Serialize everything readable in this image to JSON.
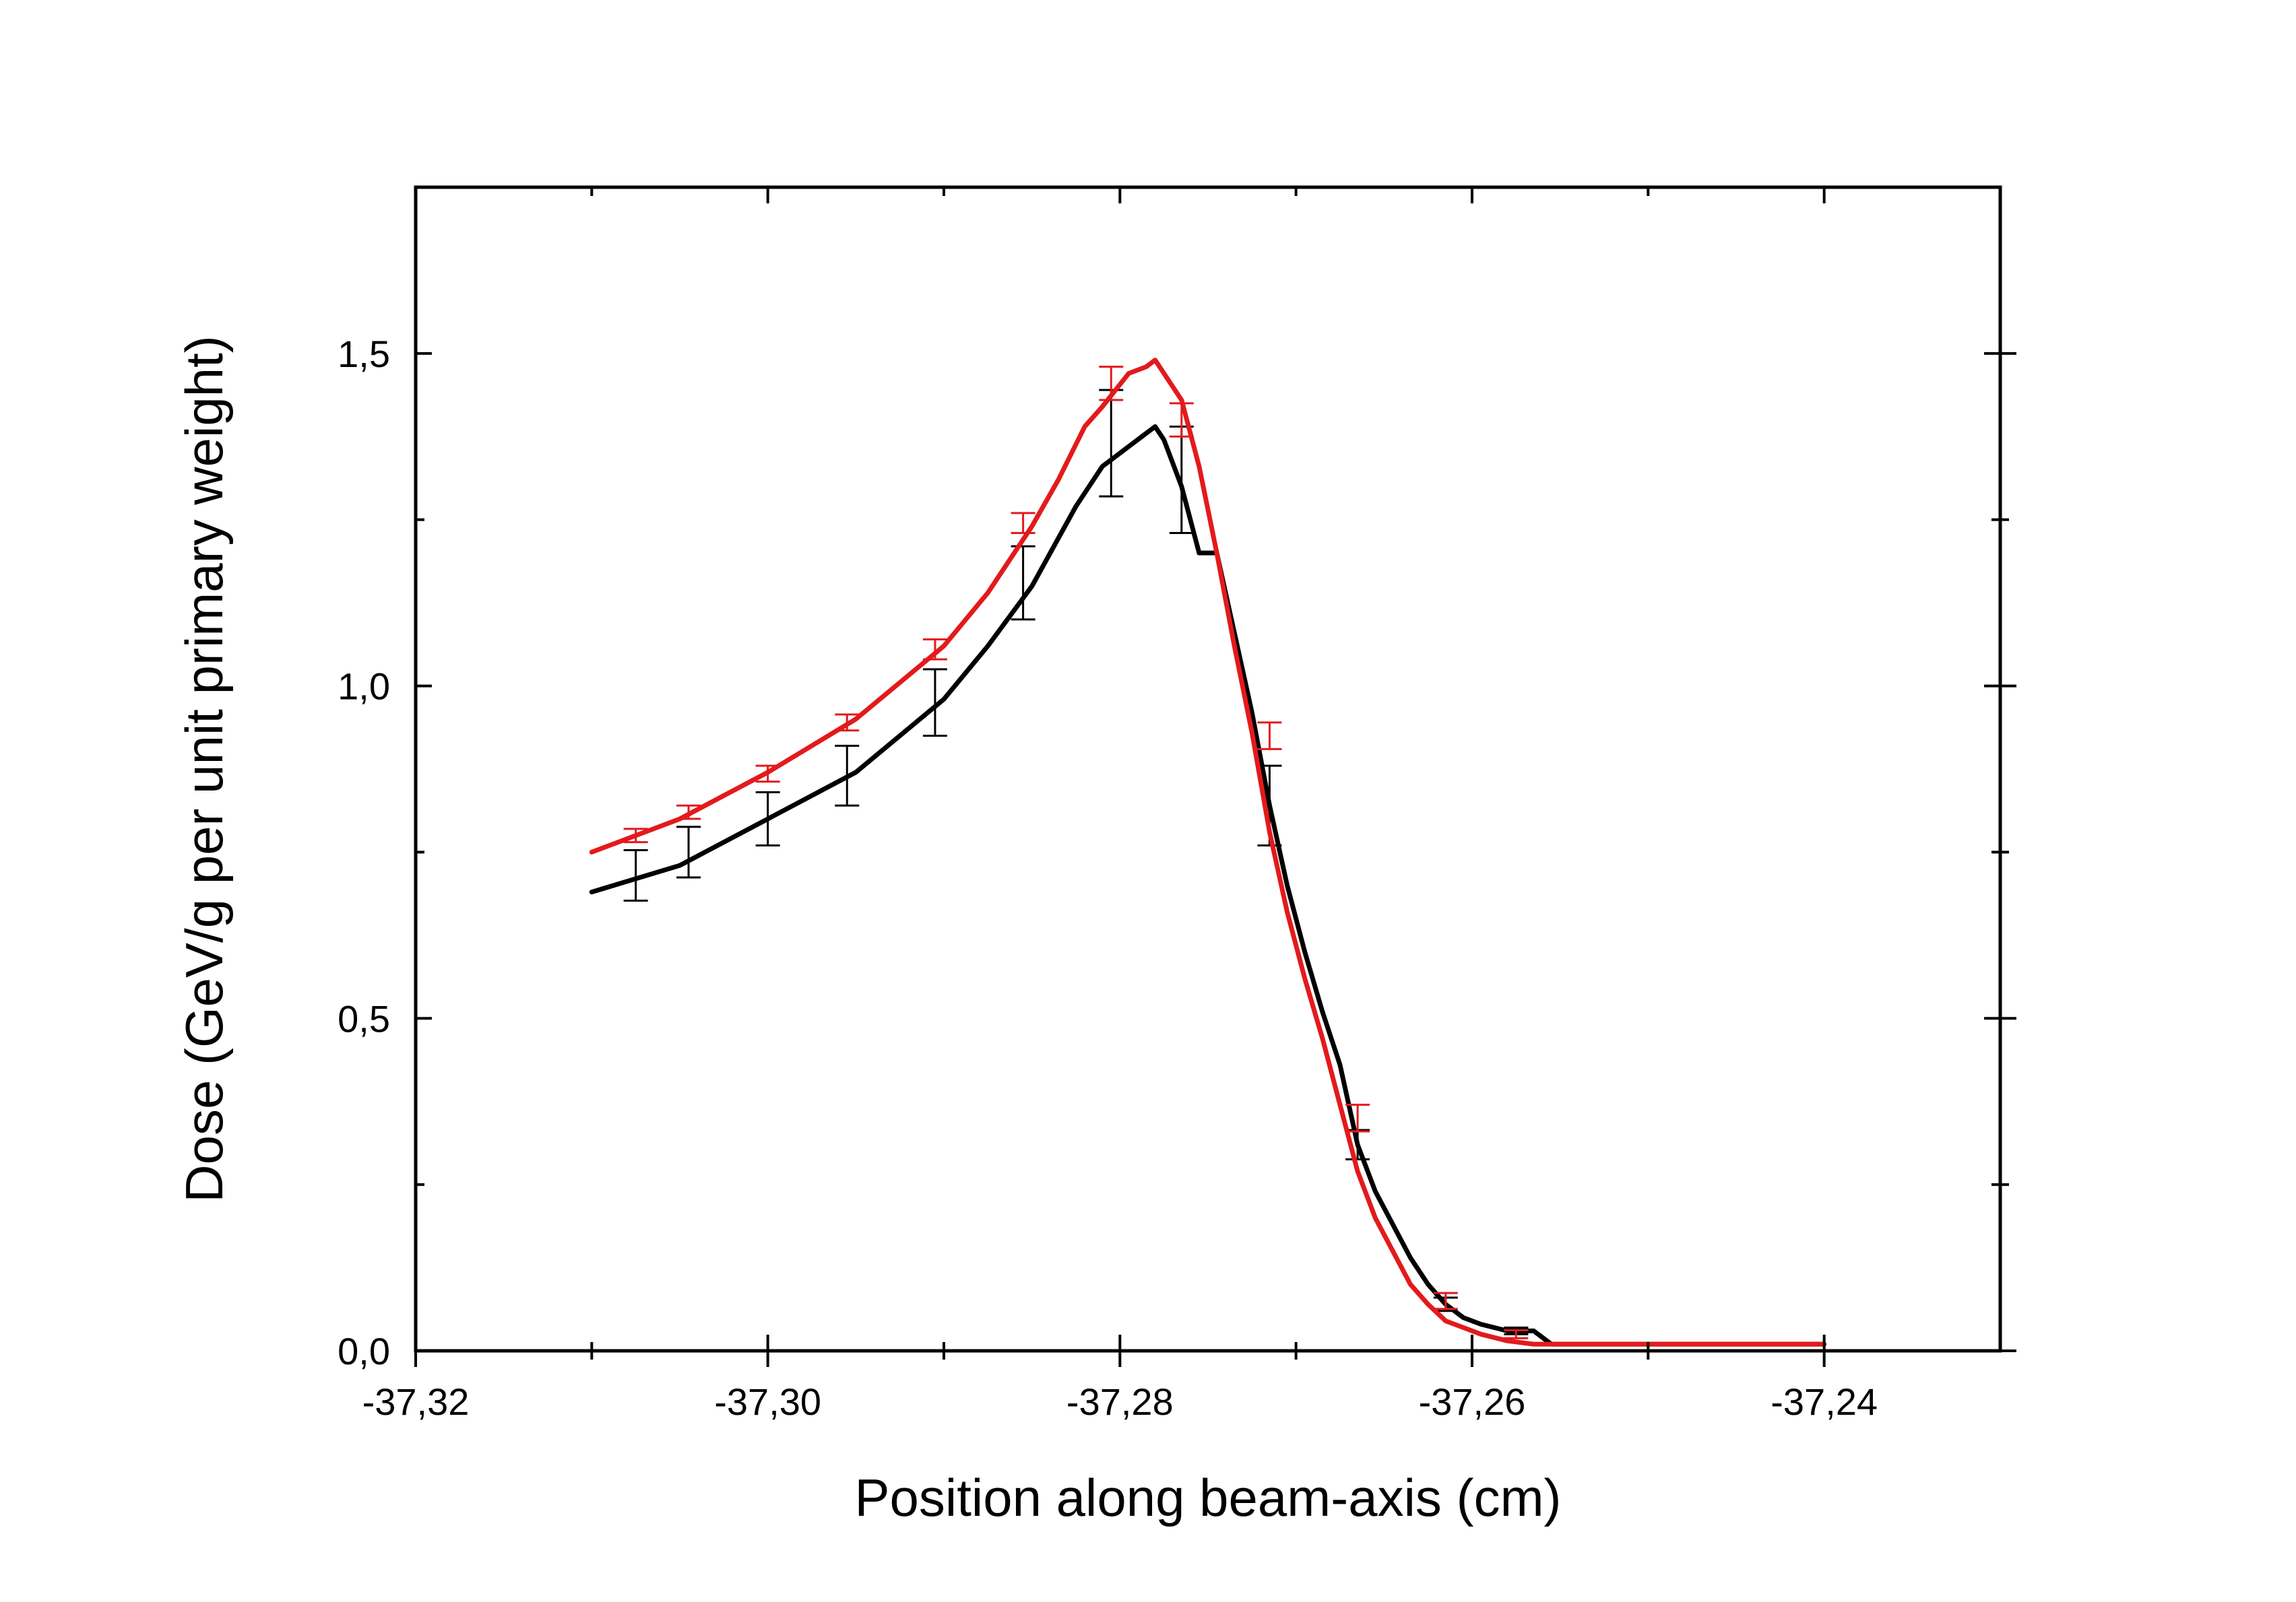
{
  "chart_data": {
    "type": "line",
    "title": "",
    "xlabel": "Position along beam-axis (cm)",
    "ylabel": "Dose (GeV/g per unit primary weight)",
    "xlim": [
      -37.32,
      -37.23
    ],
    "ylim": [
      0.0,
      1.75
    ],
    "x_tick_values": [
      -37.32,
      -37.3,
      -37.28,
      -37.26,
      -37.24
    ],
    "x_tick_labels": [
      "-37,32",
      "-37,30",
      "-37,28",
      "-37,26",
      "-37,24"
    ],
    "x_minor_ticks": [
      -37.31,
      -37.29,
      -37.27,
      -37.25
    ],
    "y_tick_values": [
      0.0,
      0.5,
      1.0,
      1.5
    ],
    "y_tick_labels": [
      "0,0",
      "0,5",
      "1,0",
      "1,5"
    ],
    "y_minor_ticks": [
      0.25,
      0.75,
      1.25
    ],
    "grid": false,
    "legend": "none",
    "series": [
      {
        "color": "#000000",
        "x": [
          -37.31,
          -37.305,
          -37.3,
          -37.295,
          -37.29,
          -37.2875,
          -37.285,
          -37.2825,
          -37.281,
          -37.2795,
          -37.2785,
          -37.278,
          -37.2775,
          -37.2765,
          -37.2755,
          -37.2745,
          -37.2735,
          -37.2725,
          -37.2715,
          -37.2705,
          -37.2695,
          -37.2685,
          -37.2675,
          -37.2665,
          -37.2655,
          -37.2645,
          -37.2635,
          -37.2625,
          -37.2615,
          -37.2605,
          -37.2595,
          -37.258,
          -37.2565,
          -37.2555,
          -37.254,
          -37.25,
          -37.245,
          -37.24
        ],
        "y": [
          0.69,
          0.73,
          0.8,
          0.87,
          0.98,
          1.06,
          1.15,
          1.27,
          1.33,
          1.36,
          1.38,
          1.39,
          1.37,
          1.3,
          1.2,
          1.2,
          1.08,
          0.96,
          0.82,
          0.7,
          0.6,
          0.51,
          0.43,
          0.31,
          0.24,
          0.19,
          0.14,
          0.1,
          0.07,
          0.05,
          0.04,
          0.03,
          0.03,
          0.01,
          0.01,
          0.01,
          0.01,
          0.01
        ],
        "error_x": [
          -37.3075,
          -37.3045,
          -37.3,
          -37.2955,
          -37.2905,
          -37.2855,
          -37.2805,
          -37.2765,
          -37.2715,
          -37.2665,
          -37.2615,
          -37.2575
        ],
        "error_y": [
          0.715,
          0.75,
          0.8,
          0.865,
          0.975,
          1.155,
          1.365,
          1.31,
          0.82,
          0.31,
          0.07,
          0.03
        ],
        "error_size": [
          0.038,
          0.038,
          0.04,
          0.045,
          0.05,
          0.055,
          0.08,
          0.08,
          0.06,
          0.022,
          0.01,
          0.005
        ]
      },
      {
        "color": "#e31a1c",
        "x": [
          -37.31,
          -37.305,
          -37.3,
          -37.295,
          -37.29,
          -37.2875,
          -37.285,
          -37.2835,
          -37.282,
          -37.281,
          -37.2795,
          -37.2785,
          -37.278,
          -37.2775,
          -37.2765,
          -37.2755,
          -37.2745,
          -37.2735,
          -37.2725,
          -37.2715,
          -37.2705,
          -37.2695,
          -37.2685,
          -37.2675,
          -37.2665,
          -37.2655,
          -37.2645,
          -37.2635,
          -37.2625,
          -37.2615,
          -37.2605,
          -37.2595,
          -37.258,
          -37.2565,
          -37.2555,
          -37.254,
          -37.25,
          -37.245,
          -37.24
        ],
        "y": [
          0.75,
          0.8,
          0.87,
          0.95,
          1.06,
          1.14,
          1.24,
          1.31,
          1.39,
          1.42,
          1.47,
          1.48,
          1.49,
          1.47,
          1.43,
          1.33,
          1.2,
          1.06,
          0.93,
          0.78,
          0.66,
          0.56,
          0.47,
          0.37,
          0.27,
          0.2,
          0.15,
          0.1,
          0.07,
          0.045,
          0.035,
          0.025,
          0.015,
          0.01,
          0.01,
          0.01,
          0.01,
          0.01,
          0.01
        ],
        "error_x": [
          -37.3075,
          -37.3045,
          -37.3,
          -37.2955,
          -37.2905,
          -37.2855,
          -37.2805,
          -37.2765,
          -37.2715,
          -37.2665,
          -37.2615,
          -37.2575
        ],
        "error_y": [
          0.775,
          0.81,
          0.868,
          0.945,
          1.055,
          1.245,
          1.455,
          1.4,
          0.925,
          0.35,
          0.075,
          0.025
        ],
        "error_size": [
          0.01,
          0.01,
          0.012,
          0.012,
          0.015,
          0.015,
          0.025,
          0.025,
          0.02,
          0.02,
          0.012,
          0.006
        ]
      }
    ]
  }
}
